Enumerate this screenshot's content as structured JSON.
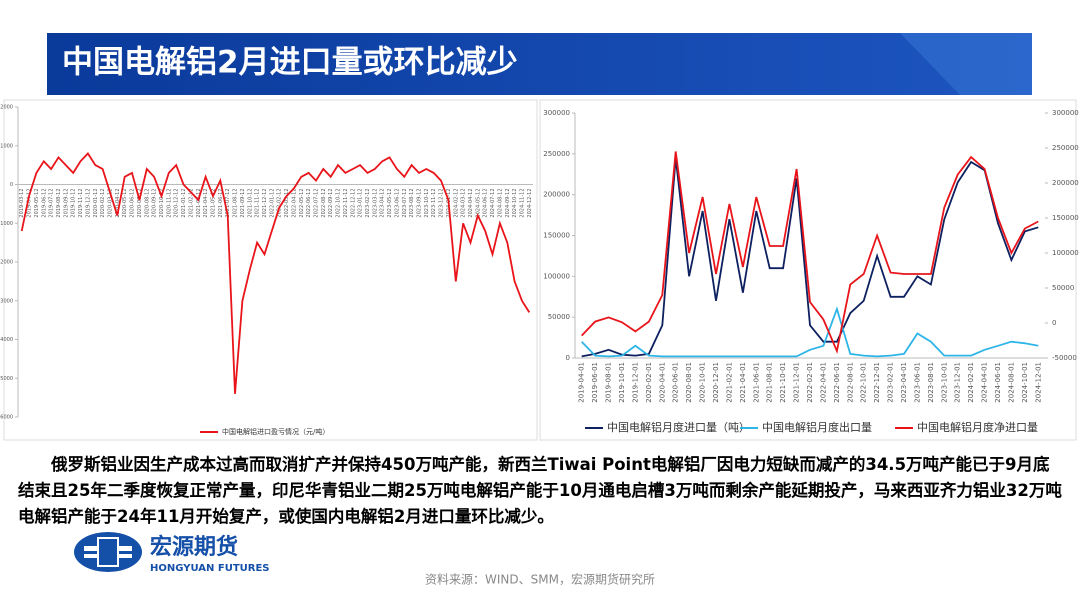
{
  "title": "中国电解铝2月进口量或环比减少",
  "body": "俄罗斯铝业因生产成本过高而取消扩产并保持450万吨产能，新西兰Tiwai Point电解铝厂因电力短缺而减产的34.5万吨产能已于9月底结束且25年二季度恢复正常产量，印尼华青铝业二期25万吨电解铝产能于10月通电启槽3万吨而剩余产能延期投产，马来西亚齐力铝业32万吨电解铝产能于24年11月开始复产，或使国内电解铝2月进口量环比减少。",
  "logo": {
    "name": "宏源期货",
    "english": "HONGYUAN FUTURES"
  },
  "source": "资料来源：WIND、SMM，宏源期货研究所",
  "chart_data": [
    {
      "type": "line",
      "categories": [
        "2019-03-12",
        "2019-04-12",
        "2019-05-12",
        "2019-06-12",
        "2019-07-12",
        "2019-08-12",
        "2019-09-12",
        "2019-10-12",
        "2019-11-12",
        "2019-12-12",
        "2020-01-12",
        "2020-02-12",
        "2020-03-12",
        "2020-04-12",
        "2020-05-12",
        "2020-06-12",
        "2020-07-12",
        "2020-08-12",
        "2020-09-12",
        "2020-10-12",
        "2020-11-12",
        "2020-12-12",
        "2021-01-12",
        "2021-02-12",
        "2021-03-12",
        "2021-04-12",
        "2021-05-12",
        "2021-06-12",
        "2021-07-12",
        "2021-08-12",
        "2021-09-12",
        "2021-10-12",
        "2021-11-12",
        "2021-12-12",
        "2022-01-12",
        "2022-02-12",
        "2022-03-12",
        "2022-04-12",
        "2022-05-12",
        "2022-06-12",
        "2022-07-12",
        "2022-08-12",
        "2022-09-12",
        "2022-10-12",
        "2022-11-12",
        "2022-12-12",
        "2023-01-12",
        "2023-02-12",
        "2023-03-12",
        "2023-04-12",
        "2023-05-12",
        "2023-06-12",
        "2023-07-12",
        "2023-08-12",
        "2023-09-12",
        "2023-10-12",
        "2023-11-12",
        "2023-12-12",
        "2024-01-12",
        "2024-02-12",
        "2024-03-12",
        "2024-04-12",
        "2024-05-12",
        "2024-06-12",
        "2024-07-12",
        "2024-08-12",
        "2024-09-12",
        "2024-10-12",
        "2024-11-12",
        "2024-12-12"
      ],
      "series": [
        {
          "name": "中国电解铝进口盈亏情况（元/吨）",
          "color": "#e8141a",
          "values": [
            -1200,
            -300,
            300,
            600,
            400,
            700,
            500,
            300,
            600,
            800,
            500,
            400,
            -200,
            -800,
            200,
            300,
            -400,
            400,
            200,
            -300,
            300,
            500,
            0,
            -200,
            -400,
            200,
            -300,
            100,
            -800,
            -5400,
            -3000,
            -2200,
            -1500,
            -1800,
            -1200,
            -600,
            -300,
            -100,
            200,
            300,
            100,
            400,
            200,
            500,
            300,
            400,
            500,
            300,
            400,
            600,
            700,
            400,
            200,
            500,
            300,
            400,
            300,
            100,
            -400,
            -2500,
            -1000,
            -1500,
            -800,
            -1200,
            -1800,
            -1000,
            -1500,
            -2500,
            -3000,
            -3300
          ]
        }
      ],
      "ylim": [
        -6000,
        2000
      ],
      "yticks": [
        -6000,
        -5000,
        -4000,
        -3000,
        -2000,
        -1000,
        0,
        1000,
        2000
      ],
      "grid": false,
      "legend": "bottom"
    },
    {
      "type": "line",
      "categories": [
        "2019-04-01",
        "2019-06-01",
        "2019-08-01",
        "2019-10-01",
        "2019-12-01",
        "2020-02-01",
        "2020-04-01",
        "2020-06-01",
        "2020-08-01",
        "2020-10-01",
        "2020-12-01",
        "2021-02-01",
        "2021-04-01",
        "2021-06-01",
        "2021-08-01",
        "2021-10-01",
        "2021-12-01",
        "2022-02-01",
        "2022-04-01",
        "2022-06-01",
        "2022-08-01",
        "2022-10-01",
        "2022-12-01",
        "2023-02-01",
        "2023-04-01",
        "2023-06-01",
        "2023-08-01",
        "2023-10-01",
        "2023-12-01",
        "2024-02-01",
        "2024-04-01",
        "2024-06-01",
        "2024-08-01",
        "2024-10-01",
        "2024-12-01"
      ],
      "series": [
        {
          "name": "中国电解铝月度进口量（吨）",
          "color": "#0d2060",
          "values": [
            2000,
            5000,
            10000,
            4000,
            3000,
            5000,
            40000,
            245000,
            100000,
            180000,
            70000,
            170000,
            80000,
            180000,
            110000,
            110000,
            220000,
            40000,
            20000,
            20000,
            55000,
            70000,
            125000,
            75000,
            75000,
            100000,
            90000,
            170000,
            215000,
            240000,
            230000,
            165000,
            120000,
            155000,
            160000
          ]
        },
        {
          "name": "中国电解铝月度出口量",
          "color": "#2eb5e8",
          "values": [
            20000,
            3000,
            2000,
            3000,
            15000,
            3000,
            2000,
            2000,
            2000,
            2000,
            2000,
            2000,
            2000,
            2000,
            2000,
            2000,
            2000,
            10000,
            15000,
            60000,
            5000,
            3000,
            2000,
            3000,
            5000,
            30000,
            20000,
            3000,
            3000,
            3000,
            10000,
            15000,
            20000,
            18000,
            15000
          ]
        },
        {
          "name": "中国电解铝月度净进口量",
          "color": "#e8141a",
          "axis": "y2",
          "values": [
            -18000,
            2000,
            8000,
            1000,
            -12000,
            2000,
            40000,
            245000,
            100000,
            180000,
            70000,
            170000,
            80000,
            180000,
            110000,
            110000,
            220000,
            30000,
            5000,
            -40000,
            55000,
            70000,
            125000,
            72000,
            70000,
            70000,
            70000,
            165000,
            212000,
            237000,
            220000,
            150000,
            100000,
            135000,
            145000
          ]
        }
      ],
      "ylim": [
        0,
        300000
      ],
      "yticks": [
        0,
        50000,
        100000,
        150000,
        200000,
        250000,
        300000
      ],
      "y2lim": [
        -50000,
        300000
      ],
      "y2ticks": [
        -50000,
        0,
        50000,
        100000,
        150000,
        200000,
        250000,
        300000
      ],
      "grid": false,
      "legend": "bottom"
    }
  ]
}
